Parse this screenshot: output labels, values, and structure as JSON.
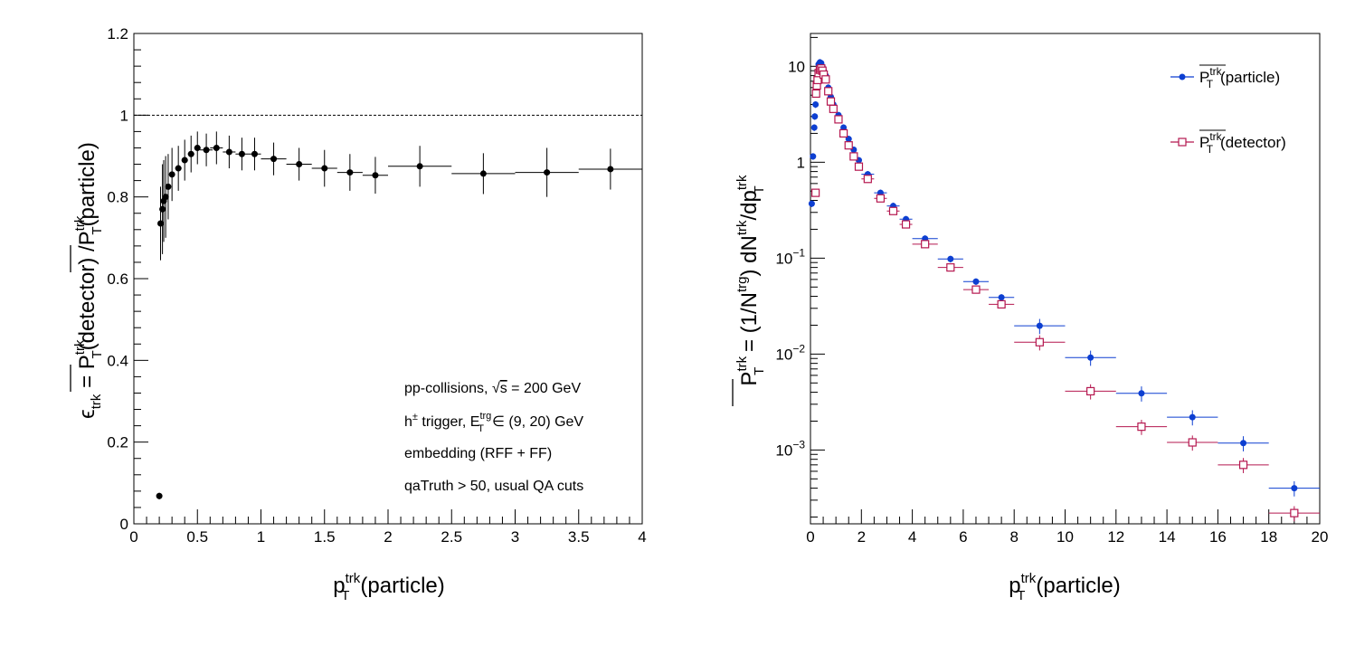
{
  "chart_data": [
    {
      "type": "scatter",
      "panel": "left",
      "xlabel": "p_T^trk(particle)",
      "ylabel": "ε_trk = P_T^trk(detector) / P_T^trk(particle)",
      "xlim": [
        0,
        4
      ],
      "ylim": [
        0,
        1.2
      ],
      "x_ticks": [
        "0",
        "0.5",
        "1",
        "1.5",
        "2",
        "2.5",
        "3",
        "3.5",
        "4"
      ],
      "y_ticks": [
        "0",
        "0.2",
        "0.4",
        "0.6",
        "0.8",
        "1",
        "1.2"
      ],
      "reference_line": {
        "y": 1,
        "style": "dashed"
      },
      "annotations": [
        "pp-collisions, √s = 200 GeV",
        "h± trigger, E_T^trg ∈ (9, 20) GeV",
        "embedding (RFF + FF)",
        "qaTruth > 50, usual QA cuts"
      ],
      "series": [
        {
          "color": "#000000",
          "marker": "filled-circle",
          "points": [
            {
              "x": 0.2,
              "y": 0.068,
              "xerr": 0.0,
              "yerr": 0.008
            },
            {
              "x": 0.21,
              "y": 0.735,
              "xerr": 0.005,
              "yerr": 0.09
            },
            {
              "x": 0.225,
              "y": 0.77,
              "xerr": 0.005,
              "yerr": 0.11
            },
            {
              "x": 0.235,
              "y": 0.79,
              "xerr": 0.005,
              "yerr": 0.1
            },
            {
              "x": 0.25,
              "y": 0.8,
              "xerr": 0.01,
              "yerr": 0.1
            },
            {
              "x": 0.27,
              "y": 0.825,
              "xerr": 0.01,
              "yerr": 0.08
            },
            {
              "x": 0.3,
              "y": 0.855,
              "xerr": 0.02,
              "yerr": 0.065
            },
            {
              "x": 0.35,
              "y": 0.87,
              "xerr": 0.025,
              "yerr": 0.055
            },
            {
              "x": 0.4,
              "y": 0.89,
              "xerr": 0.025,
              "yerr": 0.05
            },
            {
              "x": 0.45,
              "y": 0.905,
              "xerr": 0.025,
              "yerr": 0.045
            },
            {
              "x": 0.5,
              "y": 0.92,
              "xerr": 0.025,
              "yerr": 0.04
            },
            {
              "x": 0.57,
              "y": 0.915,
              "xerr": 0.05,
              "yerr": 0.04
            },
            {
              "x": 0.65,
              "y": 0.92,
              "xerr": 0.05,
              "yerr": 0.04
            },
            {
              "x": 0.75,
              "y": 0.91,
              "xerr": 0.05,
              "yerr": 0.04
            },
            {
              "x": 0.85,
              "y": 0.905,
              "xerr": 0.05,
              "yerr": 0.04
            },
            {
              "x": 0.95,
              "y": 0.905,
              "xerr": 0.05,
              "yerr": 0.04
            },
            {
              "x": 1.1,
              "y": 0.893,
              "xerr": 0.1,
              "yerr": 0.04
            },
            {
              "x": 1.3,
              "y": 0.88,
              "xerr": 0.1,
              "yerr": 0.04
            },
            {
              "x": 1.5,
              "y": 0.87,
              "xerr": 0.1,
              "yerr": 0.045
            },
            {
              "x": 1.7,
              "y": 0.86,
              "xerr": 0.1,
              "yerr": 0.045
            },
            {
              "x": 1.9,
              "y": 0.853,
              "xerr": 0.1,
              "yerr": 0.045
            },
            {
              "x": 2.25,
              "y": 0.875,
              "xerr": 0.25,
              "yerr": 0.05
            },
            {
              "x": 2.75,
              "y": 0.857,
              "xerr": 0.25,
              "yerr": 0.05
            },
            {
              "x": 3.25,
              "y": 0.86,
              "xerr": 0.25,
              "yerr": 0.06
            },
            {
              "x": 3.75,
              "y": 0.868,
              "xerr": 0.25,
              "yerr": 0.05
            }
          ]
        }
      ]
    },
    {
      "type": "scatter",
      "panel": "right",
      "xlabel": "p_T^trk(particle)",
      "ylabel": "P_T^trk = (1/N^trg) dN^trk/dp_T^trk",
      "xlim": [
        0,
        20
      ],
      "ylim": [
        0.00017,
        22
      ],
      "log_y": true,
      "x_ticks": [
        "0",
        "2",
        "4",
        "6",
        "8",
        "10",
        "12",
        "14",
        "16",
        "18",
        "20"
      ],
      "y_ticks": [
        {
          "value": 0.001,
          "mant": "10",
          "exp": "−3"
        },
        {
          "value": 0.01,
          "mant": "10",
          "exp": "−2"
        },
        {
          "value": 0.1,
          "mant": "10",
          "exp": "−1"
        },
        {
          "value": 1,
          "mant": "1",
          "exp": ""
        },
        {
          "value": 10,
          "mant": "10",
          "exp": ""
        }
      ],
      "legend": {
        "position": "top-right",
        "entries": [
          {
            "base": "P",
            "sup": "trk",
            "sub": "T",
            "suffix": "(particle)",
            "color": "#0d3fd1",
            "marker": "filled-circle"
          },
          {
            "base": "P",
            "sup": "trk",
            "sub": "T",
            "suffix": "(detector)",
            "color": "#b5174f",
            "marker": "open-square"
          }
        ]
      },
      "series": [
        {
          "name": "P_T^trk(particle)",
          "color": "#0d3fd1",
          "marker": "filled-circle",
          "points": [
            {
              "x": 0.05,
              "y": 0.37,
              "xerr": 0.05
            },
            {
              "x": 0.1,
              "y": 1.15,
              "xerr": 0.05
            },
            {
              "x": 0.15,
              "y": 2.3,
              "xerr": 0.05
            },
            {
              "x": 0.17,
              "y": 3.0,
              "xerr": 0.05
            },
            {
              "x": 0.2,
              "y": 4.0,
              "xerr": 0.05
            },
            {
              "x": 0.22,
              "y": 5.5,
              "xerr": 0.05
            },
            {
              "x": 0.25,
              "y": 7.0,
              "xerr": 0.05
            },
            {
              "x": 0.28,
              "y": 8.8,
              "xerr": 0.05
            },
            {
              "x": 0.32,
              "y": 10.5,
              "xerr": 0.05
            },
            {
              "x": 0.37,
              "y": 11.0,
              "xerr": 0.05
            },
            {
              "x": 0.42,
              "y": 10.8,
              "xerr": 0.05
            },
            {
              "x": 0.47,
              "y": 10.0,
              "xerr": 0.05
            },
            {
              "x": 0.52,
              "y": 9.0,
              "xerr": 0.05
            },
            {
              "x": 0.6,
              "y": 8.0,
              "xerr": 0.1
            },
            {
              "x": 0.7,
              "y": 6.0,
              "xerr": 0.1
            },
            {
              "x": 0.8,
              "y": 4.8,
              "xerr": 0.1
            },
            {
              "x": 0.9,
              "y": 4.0,
              "xerr": 0.1
            },
            {
              "x": 1.1,
              "y": 3.1,
              "xerr": 0.1
            },
            {
              "x": 1.3,
              "y": 2.3,
              "xerr": 0.1
            },
            {
              "x": 1.5,
              "y": 1.75,
              "xerr": 0.1
            },
            {
              "x": 1.7,
              "y": 1.35,
              "xerr": 0.1
            },
            {
              "x": 1.9,
              "y": 1.05,
              "xerr": 0.1
            },
            {
              "x": 2.25,
              "y": 0.75,
              "xerr": 0.25
            },
            {
              "x": 2.75,
              "y": 0.48,
              "xerr": 0.25
            },
            {
              "x": 3.25,
              "y": 0.35,
              "xerr": 0.25
            },
            {
              "x": 3.75,
              "y": 0.255,
              "xerr": 0.25
            },
            {
              "x": 4.5,
              "y": 0.16,
              "xerr": 0.5
            },
            {
              "x": 5.5,
              "y": 0.098,
              "xerr": 0.5
            },
            {
              "x": 6.5,
              "y": 0.057,
              "xerr": 0.5
            },
            {
              "x": 7.5,
              "y": 0.039,
              "xerr": 0.5
            },
            {
              "x": 9,
              "y": 0.0197,
              "xerr": 1
            },
            {
              "x": 11,
              "y": 0.0092,
              "xerr": 1
            },
            {
              "x": 13,
              "y": 0.0039,
              "xerr": 1
            },
            {
              "x": 15,
              "y": 0.0022,
              "xerr": 1
            },
            {
              "x": 17,
              "y": 0.00118,
              "xerr": 1
            },
            {
              "x": 19,
              "y": 0.0004,
              "xerr": 1
            }
          ]
        },
        {
          "name": "P_T^trk(detector)",
          "color": "#b5174f",
          "marker": "open-square",
          "points": [
            {
              "x": 0.2,
              "y": 0.48,
              "xerr": 0.05
            },
            {
              "x": 0.22,
              "y": 5.2,
              "xerr": 0.05
            },
            {
              "x": 0.25,
              "y": 6.3,
              "xerr": 0.05
            },
            {
              "x": 0.28,
              "y": 7.2,
              "xerr": 0.05
            },
            {
              "x": 0.32,
              "y": 8.5,
              "xerr": 0.05
            },
            {
              "x": 0.37,
              "y": 9.2,
              "xerr": 0.05
            },
            {
              "x": 0.42,
              "y": 9.5,
              "xerr": 0.05
            },
            {
              "x": 0.47,
              "y": 9.0,
              "xerr": 0.05
            },
            {
              "x": 0.52,
              "y": 8.2,
              "xerr": 0.05
            },
            {
              "x": 0.6,
              "y": 7.3,
              "xerr": 0.1
            },
            {
              "x": 0.7,
              "y": 5.5,
              "xerr": 0.1
            },
            {
              "x": 0.8,
              "y": 4.3,
              "xerr": 0.1
            },
            {
              "x": 0.9,
              "y": 3.6,
              "xerr": 0.1
            },
            {
              "x": 1.1,
              "y": 2.8,
              "xerr": 0.1
            },
            {
              "x": 1.3,
              "y": 2.0,
              "xerr": 0.1
            },
            {
              "x": 1.5,
              "y": 1.5,
              "xerr": 0.1
            },
            {
              "x": 1.7,
              "y": 1.15,
              "xerr": 0.1
            },
            {
              "x": 1.9,
              "y": 0.9,
              "xerr": 0.1
            },
            {
              "x": 2.25,
              "y": 0.67,
              "xerr": 0.25
            },
            {
              "x": 2.75,
              "y": 0.42,
              "xerr": 0.25
            },
            {
              "x": 3.25,
              "y": 0.31,
              "xerr": 0.25
            },
            {
              "x": 3.75,
              "y": 0.225,
              "xerr": 0.25
            },
            {
              "x": 4.5,
              "y": 0.14,
              "xerr": 0.5
            },
            {
              "x": 5.5,
              "y": 0.08,
              "xerr": 0.5
            },
            {
              "x": 6.5,
              "y": 0.047,
              "xerr": 0.5
            },
            {
              "x": 7.5,
              "y": 0.033,
              "xerr": 0.5
            },
            {
              "x": 9,
              "y": 0.0133,
              "xerr": 1
            },
            {
              "x": 11,
              "y": 0.0041,
              "xerr": 1
            },
            {
              "x": 13,
              "y": 0.00175,
              "xerr": 1
            },
            {
              "x": 15,
              "y": 0.0012,
              "xerr": 1
            },
            {
              "x": 17,
              "y": 0.0007,
              "xerr": 1
            },
            {
              "x": 19,
              "y": 0.00022,
              "xerr": 1
            }
          ]
        }
      ]
    }
  ]
}
